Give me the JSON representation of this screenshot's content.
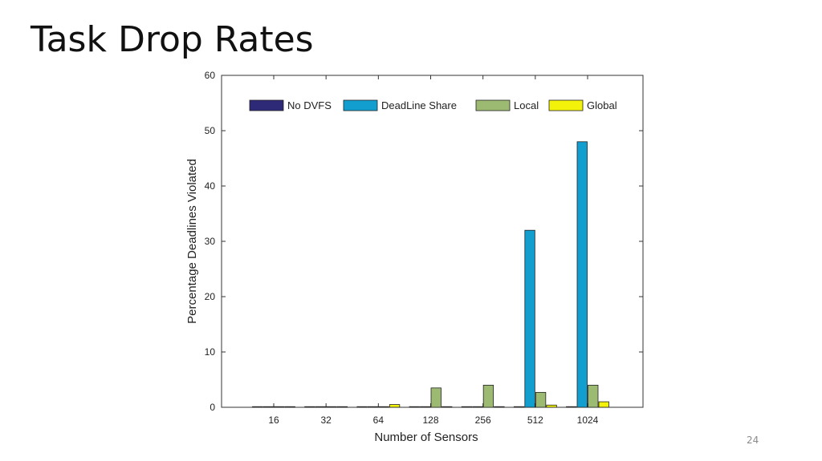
{
  "slide": {
    "title": "Task Drop Rates",
    "page_number": "24"
  },
  "chart_data": {
    "type": "bar",
    "title": "",
    "xlabel": "Number of Sensors",
    "ylabel": "Percentage Deadlines Violated",
    "categories": [
      "16",
      "32",
      "64",
      "128",
      "256",
      "512",
      "1024"
    ],
    "ylim": [
      0,
      60
    ],
    "yticks": [
      0,
      10,
      20,
      30,
      40,
      50,
      60
    ],
    "grid": false,
    "legend_placement": "top",
    "series": [
      {
        "name": "No DVFS",
        "color": "#2e2a78",
        "values": [
          0,
          0,
          0,
          0,
          0,
          0,
          0
        ]
      },
      {
        "name": "DeadLine Share",
        "color": "#129fd0",
        "values": [
          0,
          0,
          0,
          0,
          0,
          32,
          48
        ]
      },
      {
        "name": "Local",
        "color": "#9dba72",
        "values": [
          0,
          0,
          0,
          3.5,
          4,
          2.7,
          4
        ]
      },
      {
        "name": "Global",
        "color": "#f2f20a",
        "values": [
          0,
          0,
          0.5,
          0,
          0,
          0.4,
          1
        ]
      }
    ]
  }
}
